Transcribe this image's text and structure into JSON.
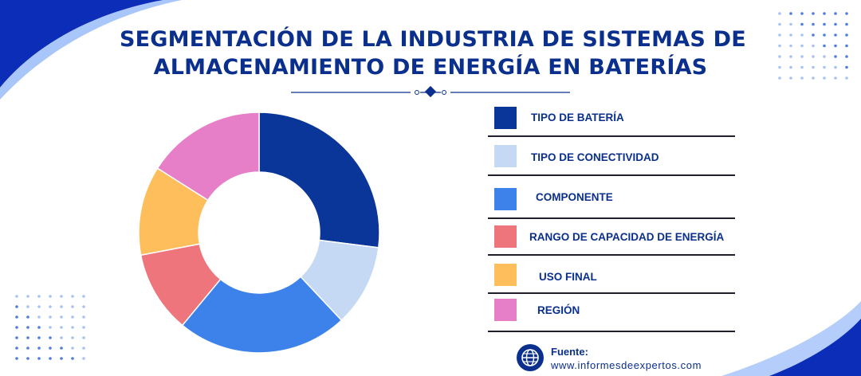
{
  "title_lines": [
    "SEGMENTACIÓN DE LA INDUSTRIA DE SISTEMAS DE",
    "ALMACENAMIENTO DE ENERGÍA EN BATERÍAS"
  ],
  "chart_data": {
    "type": "pie",
    "donut": true,
    "categories": [
      "TIPO DE BATERÍA",
      "TIPO DE CONECTIVIDAD",
      "COMPONENTE",
      "RANGO DE CAPACIDAD DE ENERGÍA",
      "USO FINAL",
      "REGIÓN"
    ],
    "values": [
      27,
      11,
      23,
      11,
      12,
      16
    ],
    "colors": [
      "#0a3699",
      "#c5d9f5",
      "#3d82ea",
      "#ee757b",
      "#ffbe5c",
      "#e67ec8"
    ],
    "legend_position": "right"
  },
  "legend": [
    {
      "label": "TIPO DE BATERÍA",
      "color": "#0a3699"
    },
    {
      "label": "TIPO DE CONECTIVIDAD",
      "color": "#c5d9f5"
    },
    {
      "label": "COMPONENTE",
      "color": "#3d82ea"
    },
    {
      "label": "RANGO DE CAPACIDAD DE ENERGÍA",
      "color": "#ee757b"
    },
    {
      "label": "USO FINAL",
      "color": "#ffbe5c"
    },
    {
      "label": "REGIÓN",
      "color": "#e67ec8"
    }
  ],
  "source": {
    "label": "Fuente:",
    "url": "www.informesdeexpertos.com",
    "icon": "globe-icon"
  },
  "colors": {
    "title": "#0a2f8c",
    "accent_dark": "#0a2fb4",
    "accent_light": "#8fb6f8"
  }
}
